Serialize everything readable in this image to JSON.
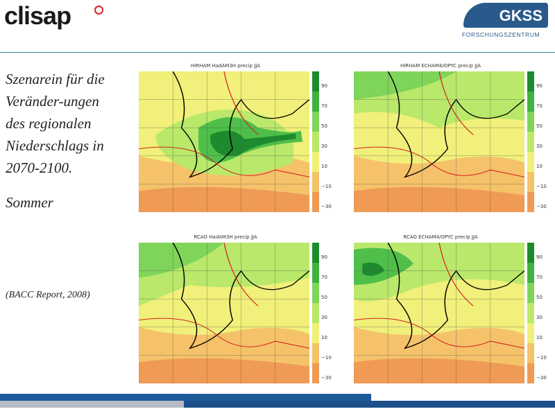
{
  "header": {
    "logo_left": "clisap",
    "logo_right": "GKSS",
    "logo_right_sub": "FORSCHUNGSZENTRUM"
  },
  "text": {
    "heading_lines": [
      "Szenarein für die",
      "Veränder-ungen",
      "des regionalen",
      "Niederschlags in",
      "2070-2100."
    ],
    "season": "Sommer",
    "source": "(BACC Report, 2008)"
  },
  "panels": [
    {
      "title": "HIRHAM HadAM3H precip JJA"
    },
    {
      "title": "HIRHAM ECHAM4/OPYC precip JJA"
    },
    {
      "title": "RCAO HadAM3H precip JJA"
    },
    {
      "title": "RCAO ECHAM4/OPYC precip JJA"
    }
  ],
  "colorbar_labels": [
    "90",
    "70",
    "50",
    "30",
    "10",
    "−10",
    "−30"
  ]
}
